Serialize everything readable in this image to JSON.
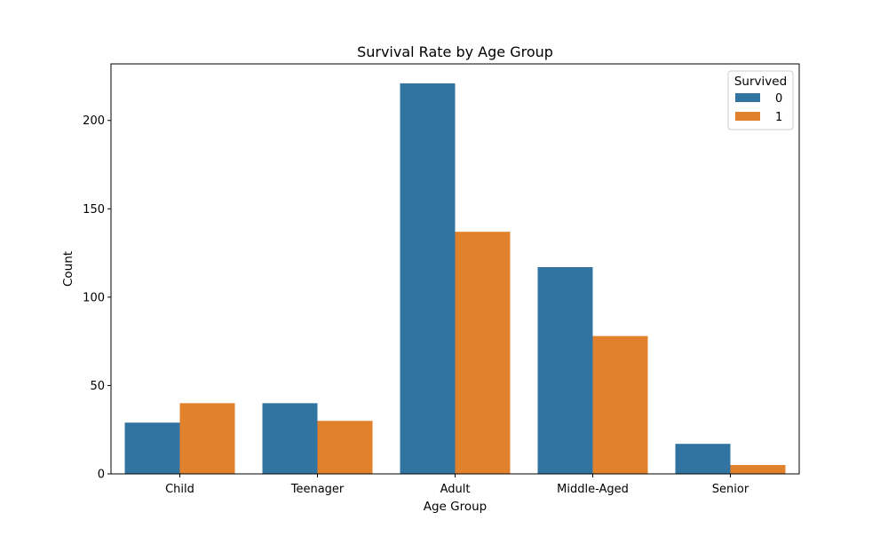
{
  "chart_data": {
    "type": "bar",
    "title": "Survival Rate by Age Group",
    "xlabel": "Age Group",
    "ylabel": "Count",
    "categories": [
      "Child",
      "Teenager",
      "Adult",
      "Middle-Aged",
      "Senior"
    ],
    "series": [
      {
        "name": "0",
        "values": [
          29,
          40,
          221,
          117,
          17
        ],
        "color": "#3274a1"
      },
      {
        "name": "1",
        "values": [
          40,
          30,
          137,
          78,
          5
        ],
        "color": "#e1812c"
      }
    ],
    "ylim": [
      0,
      232
    ],
    "yticks": [
      0,
      50,
      100,
      150,
      200
    ],
    "legend": {
      "title": "Survived",
      "placement": "top-right"
    },
    "grid": false
  }
}
